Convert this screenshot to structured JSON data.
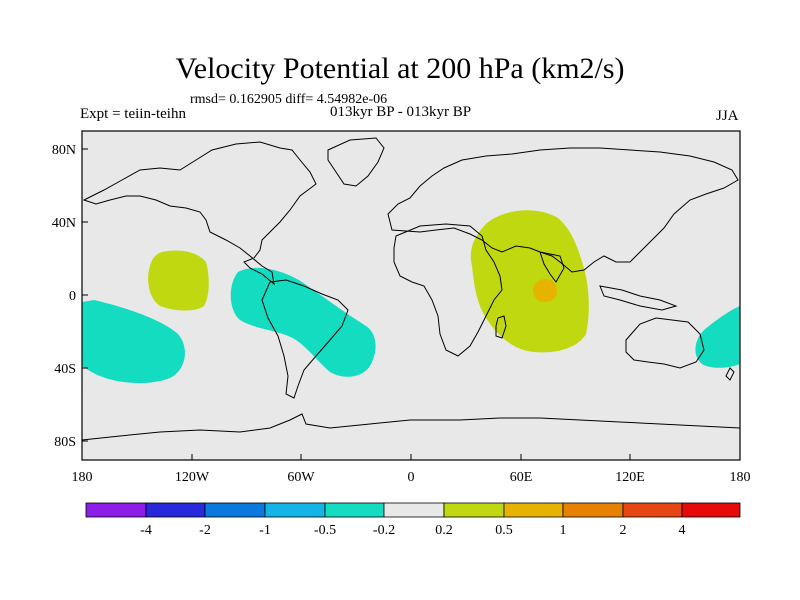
{
  "title": "Velocity Potential at 200 hPa (km2/s)",
  "stats_line": "rmsd= 0.162905 diff= 4.54982e-06",
  "experiment_label": "Expt = teiin-teihn",
  "period_label": "013kyr BP - 013kyr BP",
  "season_label": "JJA",
  "map": {
    "background_color": "#e8e8e8",
    "lon_ticks": [
      "180",
      "120W",
      "60W",
      "0",
      "60E",
      "120E",
      "180"
    ],
    "lat_ticks": [
      "80N",
      "40N",
      "0",
      "40S",
      "80S"
    ]
  },
  "anomaly_regions": [
    {
      "name": "central-pacific-positive",
      "level": "0.2 to 0.5",
      "color": "#c0d80f"
    },
    {
      "name": "south-pacific-negative",
      "level": "-0.5 to -0.2",
      "color": "#14dcc0"
    },
    {
      "name": "south-america-negative",
      "level": "-0.5 to -0.2",
      "color": "#14dcc0"
    },
    {
      "name": "indian-ocean-positive",
      "level": "0.2 to 0.5",
      "color": "#c0d80f"
    },
    {
      "name": "indian-ocean-peak",
      "level": "0.5 to 1",
      "color": "#e6b400"
    },
    {
      "name": "australia-pacific-negative",
      "level": "-0.5 to -0.2",
      "color": "#14dcc0"
    }
  ],
  "colorbar": {
    "colors": [
      "#8c1ee8",
      "#2828dc",
      "#0a78dc",
      "#14b4e6",
      "#14dcc0",
      "#e8e8e8",
      "#c0d80f",
      "#e6b400",
      "#e68200",
      "#e64614",
      "#e60a0a"
    ],
    "labels": [
      "-4",
      "-2",
      "-1",
      "-0.5",
      "-0.2",
      "0.2",
      "0.5",
      "1",
      "2",
      "4"
    ]
  }
}
